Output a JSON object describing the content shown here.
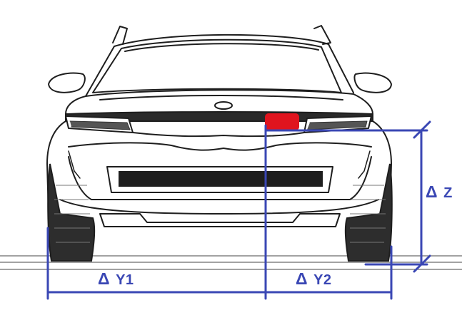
{
  "diagram": {
    "subject": "car-rear-view",
    "accent_color": "#3a47b4",
    "marker_color": "#e0141e",
    "outline_color": "#1e1e1e",
    "measurements": {
      "delta_symbol": "Δ",
      "y1": "Y1",
      "y2": "Y2",
      "z": "Z"
    }
  }
}
